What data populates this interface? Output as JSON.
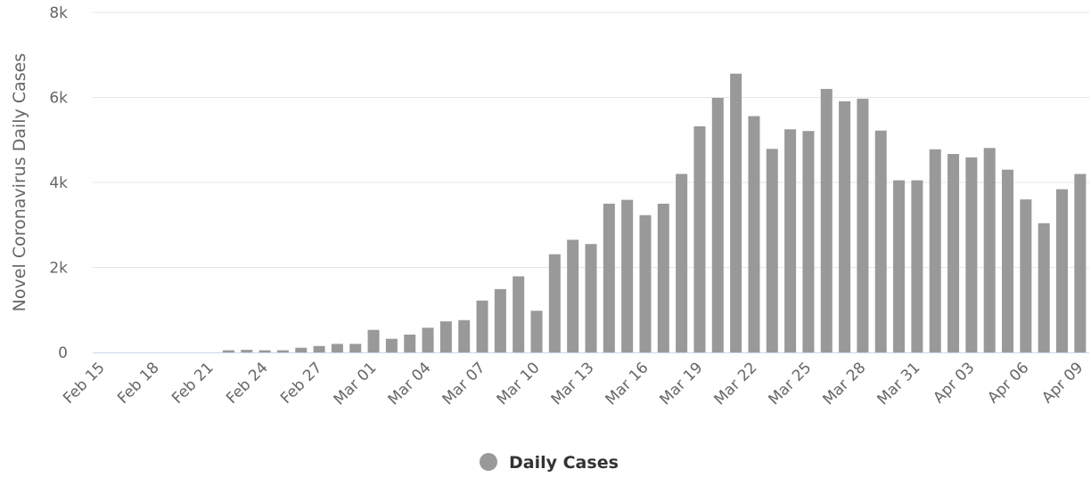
{
  "chart_data": {
    "type": "bar",
    "y_label": "Novel Coronavirus Daily Cases",
    "categories": [
      "Feb 15",
      null,
      null,
      "Feb 18",
      null,
      null,
      "Feb 21",
      null,
      null,
      "Feb 24",
      null,
      null,
      "Feb 27",
      null,
      null,
      "Mar 01",
      null,
      null,
      "Mar 04",
      null,
      null,
      "Mar 07",
      null,
      null,
      "Mar 10",
      null,
      null,
      "Mar 13",
      null,
      null,
      "Mar 16",
      null,
      null,
      "Mar 19",
      null,
      null,
      "Mar 22",
      null,
      null,
      "Mar 25",
      null,
      null,
      "Mar 28",
      null,
      null,
      "Mar 31",
      null,
      null,
      "Apr 03",
      null,
      null,
      "Apr 06",
      null,
      null,
      "Apr 09"
    ],
    "series": [
      {
        "name": "Daily Cases",
        "color": "#999999",
        "values": [
          0,
          0,
          0,
          0,
          0,
          0,
          0,
          50,
          60,
          50,
          50,
          110,
          150,
          200,
          200,
          530,
          320,
          420,
          580,
          730,
          760,
          1220,
          1490,
          1790,
          980,
          2310,
          2650,
          2550,
          3500,
          3590,
          3230,
          3500,
          4200,
          5320,
          5990,
          6560,
          5560,
          4790,
          5250,
          5210,
          6200,
          5910,
          5970,
          5220,
          4050,
          4050,
          4780,
          4670,
          4590,
          4810,
          4300,
          3600,
          3040,
          3840,
          4200
        ]
      }
    ],
    "ylim": [
      0,
      8000
    ],
    "yticks": [
      0,
      {
        "value": 2000,
        "label": "2k"
      },
      {
        "value": 4000,
        "label": "4k"
      },
      {
        "value": 6000,
        "label": "6k"
      },
      {
        "value": 8000,
        "label": "8k"
      }
    ],
    "grid": true
  }
}
